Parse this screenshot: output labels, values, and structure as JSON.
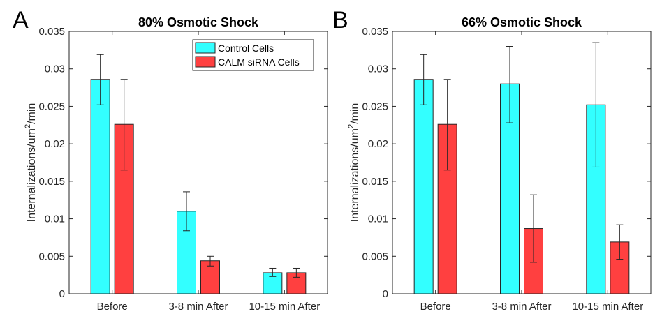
{
  "chart_data": [
    {
      "panel_label": "A",
      "type": "bar",
      "title": "80% Osmotic Shock",
      "ylabel": "Internalizations/um2/min",
      "ylabel_parts": [
        "Internalizations/um",
        "2",
        "/min"
      ],
      "categories": [
        "Before",
        "3-8 min After",
        "10-15 min After"
      ],
      "ylim": [
        0,
        0.035
      ],
      "yticks": [
        0,
        0.005,
        0.01,
        0.015,
        0.02,
        0.025,
        0.03,
        0.035
      ],
      "ytick_labels": [
        "0",
        "0.005",
        "0.01",
        "0.015",
        "0.02",
        "0.025",
        "0.03",
        "0.035"
      ],
      "legend": "top-right",
      "grid": false,
      "series": [
        {
          "name": "Control Cells",
          "color": "#33ffff",
          "values": [
            0.0286,
            0.011,
            0.0028
          ],
          "err_low": [
            0.0252,
            0.0084,
            0.0023
          ],
          "err_high": [
            0.0319,
            0.0136,
            0.0034
          ]
        },
        {
          "name": "CALM siRNA Cells",
          "color": "#ff4040",
          "values": [
            0.0226,
            0.0044,
            0.0028
          ],
          "err_low": [
            0.0165,
            0.0037,
            0.0022
          ],
          "err_high": [
            0.0286,
            0.005,
            0.0034
          ]
        }
      ]
    },
    {
      "panel_label": "B",
      "type": "bar",
      "title": "66% Osmotic Shock",
      "ylabel": "Internalizations/um2/min",
      "ylabel_parts": [
        "Internalizations/um",
        "2",
        "/min"
      ],
      "categories": [
        "Before",
        "3-8 min After",
        "10-15 min After"
      ],
      "ylim": [
        0,
        0.035
      ],
      "yticks": [
        0,
        0.005,
        0.01,
        0.015,
        0.02,
        0.025,
        0.03,
        0.035
      ],
      "ytick_labels": [
        "0",
        "0.005",
        "0.01",
        "0.015",
        "0.02",
        "0.025",
        "0.03",
        "0.035"
      ],
      "legend": "",
      "grid": false,
      "series": [
        {
          "name": "Control Cells",
          "color": "#33ffff",
          "values": [
            0.0286,
            0.028,
            0.0252
          ],
          "err_low": [
            0.0252,
            0.0228,
            0.0169
          ],
          "err_high": [
            0.0319,
            0.033,
            0.0335
          ]
        },
        {
          "name": "CALM siRNA Cells",
          "color": "#ff4040",
          "values": [
            0.0226,
            0.0087,
            0.0069
          ],
          "err_low": [
            0.0165,
            0.0042,
            0.0046
          ],
          "err_high": [
            0.0286,
            0.0132,
            0.0092
          ]
        }
      ]
    }
  ]
}
